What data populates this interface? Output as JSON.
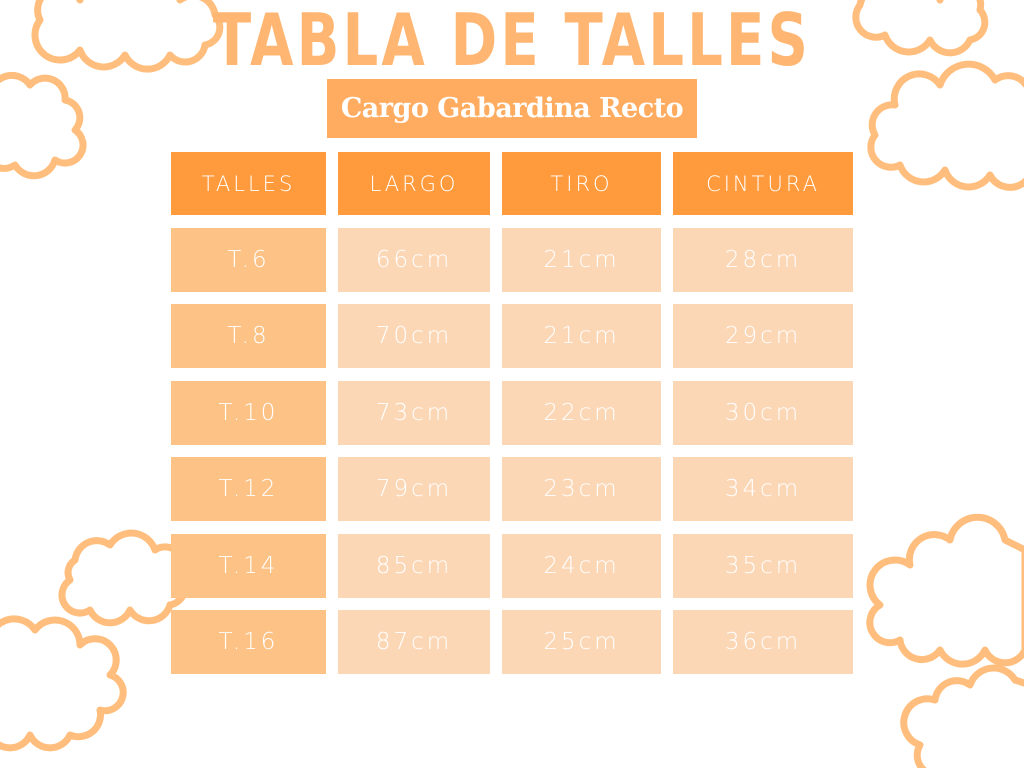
{
  "title": "TABLA DE TALLES",
  "subtitle": "Cargo Gabardina Recto",
  "colors": {
    "header": "#FF9B3D",
    "size_cell": "#FDC286",
    "value_cell": "#FCD7B6",
    "subtitle_bg": "#FFAC60",
    "title": "#FFB672",
    "clouds": "#FFBE7D"
  },
  "table": {
    "headers": [
      "TALLES",
      "LARGO",
      "TIRO",
      "CINTURA"
    ],
    "rows": [
      [
        "T.6",
        "66cm",
        "21cm",
        "28cm"
      ],
      [
        "T.8",
        "70cm",
        "21cm",
        "29cm"
      ],
      [
        "T.10",
        "73cm",
        "22cm",
        "30cm"
      ],
      [
        "T.12",
        "79cm",
        "23cm",
        "34cm"
      ],
      [
        "T.14",
        "85cm",
        "24cm",
        "35cm"
      ],
      [
        "T.16",
        "87cm",
        "25cm",
        "36cm"
      ]
    ]
  }
}
